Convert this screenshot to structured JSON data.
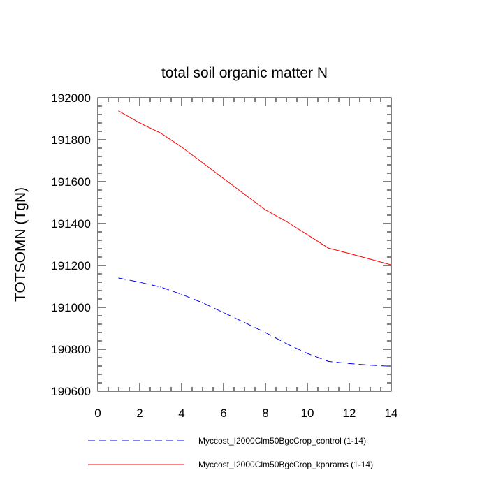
{
  "chart_data": {
    "type": "line",
    "title": "total soil organic matter N",
    "xlabel": "",
    "ylabel": "TOTSOMN  (TgN)",
    "xlim": [
      0,
      14
    ],
    "ylim": [
      190600,
      192000
    ],
    "x_ticks": [
      0,
      2,
      4,
      6,
      8,
      10,
      12,
      14
    ],
    "y_ticks": [
      190600,
      190800,
      191000,
      191200,
      191400,
      191600,
      191800,
      192000
    ],
    "x_tick_labels": [
      "0",
      "2",
      "4",
      "6",
      "8",
      "10",
      "12",
      "14"
    ],
    "y_tick_labels": [
      "190600",
      "190800",
      "191000",
      "191200",
      "191400",
      "191600",
      "191800",
      "192000"
    ],
    "grid": false,
    "legend_position": "bottom",
    "series": [
      {
        "name": "Myccost_I2000Clm50BgcCrop_control (1-14)",
        "color": "#0000ff",
        "style": "dashed",
        "x": [
          1,
          2,
          3,
          4,
          5,
          6,
          7,
          8,
          9,
          10,
          11,
          12,
          13,
          14
        ],
        "values": [
          191140,
          191120,
          191097,
          191062,
          191022,
          190975,
          190928,
          190880,
          190827,
          190780,
          190742,
          190732,
          190724,
          190719
        ]
      },
      {
        "name": "Myccost_I2000Clm50BgcCrop_kparams (1-14)",
        "color": "#ff0000",
        "style": "solid",
        "x": [
          1,
          2,
          3,
          4,
          5,
          6,
          7,
          8,
          9,
          10,
          11,
          12,
          13,
          14
        ],
        "values": [
          191937,
          191880,
          191832,
          191765,
          191690,
          191615,
          191540,
          191465,
          191410,
          191347,
          191283,
          191257,
          191230,
          191203
        ]
      }
    ]
  }
}
